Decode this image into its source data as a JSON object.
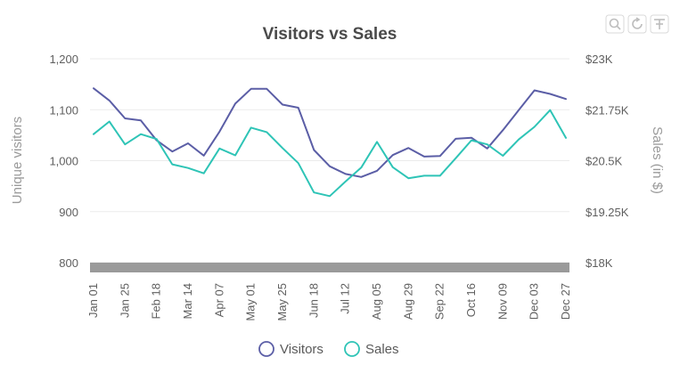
{
  "toolbar": {
    "icons": [
      "zoom-icon",
      "reset-icon",
      "pin-icon"
    ]
  },
  "chart_data": {
    "type": "line",
    "title": "Visitors vs Sales",
    "ylabel": "Unique visitors",
    "y2label": "Sales (in $)",
    "ylim": [
      800,
      1200
    ],
    "y2lim": [
      18000,
      23000
    ],
    "yticks": [
      "800",
      "900",
      "1,000",
      "1,100",
      "1,200"
    ],
    "y2ticks": [
      "$18K",
      "$19.25K",
      "$20.5K",
      "$21.75K",
      "$23K"
    ],
    "grid": true,
    "legend_position": "bottom",
    "scroll_bar": true,
    "x_tick_labels": [
      "Jan 01",
      "Jan 25",
      "Feb 18",
      "Mar 14",
      "Apr 07",
      "May 01",
      "May 25",
      "Jun 18",
      "Jul 12",
      "Aug 05",
      "Aug 29",
      "Sep 22",
      "Oct 16",
      "Nov 09",
      "Dec 03",
      "Dec 27"
    ],
    "x_tick_indices": [
      0,
      2,
      4,
      6,
      8,
      10,
      12,
      14,
      16,
      18,
      20,
      22,
      24,
      26,
      28,
      30
    ],
    "colors": {
      "Visitors": "#5b5ea6",
      "Sales": "#2ec4b6",
      "scrollbar": "#9a9a9a"
    },
    "series": [
      {
        "name": "Visitors",
        "axis": "left",
        "values": [
          1142,
          1118,
          1083,
          1079,
          1040,
          1018,
          1034,
          1010,
          1057,
          1112,
          1141,
          1141,
          1110,
          1104,
          1021,
          989,
          974,
          968,
          980,
          1011,
          1025,
          1008,
          1009,
          1043,
          1045,
          1024,
          1060,
          1099,
          1138,
          1131,
          1121
        ]
      },
      {
        "name": "Sales",
        "axis": "right",
        "values": [
          21150,
          21460,
          20900,
          21150,
          21030,
          20410,
          20320,
          20190,
          20800,
          20630,
          21310,
          21200,
          20810,
          20440,
          19720,
          19630,
          19990,
          20330,
          20960,
          20340,
          20070,
          20130,
          20130,
          20560,
          21000,
          20900,
          20620,
          21020,
          21330,
          21740,
          21060
        ]
      }
    ]
  }
}
